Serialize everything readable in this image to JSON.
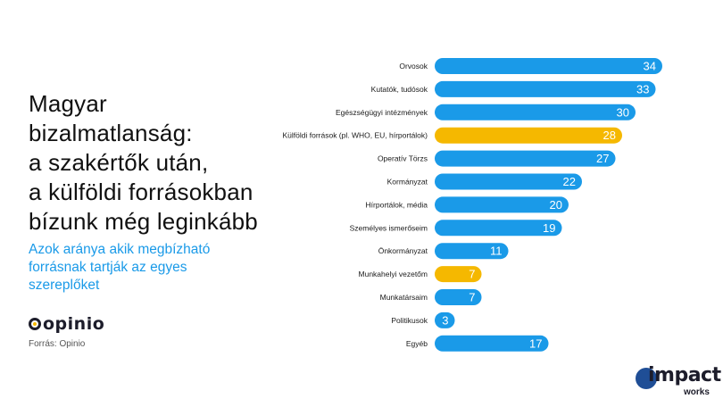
{
  "headline": {
    "lines": [
      "Magyar",
      "bizalmatlanság:",
      "a szakértők után,",
      "a külföldi forrásokban",
      "bízunk még leginkább"
    ]
  },
  "subtitle": {
    "lines": [
      "Azok aránya akik megbízható",
      "forrásnak tartják az egyes",
      "szereplőket"
    ]
  },
  "logos": {
    "opinio": "opinio",
    "impact": "impact",
    "impact_sub": "works"
  },
  "source": "Forrás: Opinio",
  "colors": {
    "default_bar": "#1a9ae8",
    "highlight_bar": "#f5b800",
    "subtitle": "#1a9ae8"
  },
  "chart_data": {
    "type": "bar",
    "orientation": "horizontal",
    "categories": [
      "Orvosok",
      "Kutatók, tudósok",
      "Egészségügyi intézmények",
      "Külföldi források (pl. WHO, EU, hírportálok)",
      "Operatív Törzs",
      "Kormányzat",
      "Hírportálok, média",
      "Személyes ismerőseim",
      "Önkormányzat",
      "Munkahelyi vezetőm",
      "Munkatársaim",
      "Politikusok",
      "Egyéb"
    ],
    "values": [
      34,
      33,
      30,
      28,
      27,
      22,
      20,
      19,
      11,
      7,
      7,
      3,
      17
    ],
    "highlighted": [
      false,
      false,
      false,
      true,
      false,
      false,
      false,
      false,
      false,
      true,
      false,
      false,
      false
    ],
    "xlim": [
      0,
      34
    ],
    "grid": false,
    "legend": "none"
  }
}
